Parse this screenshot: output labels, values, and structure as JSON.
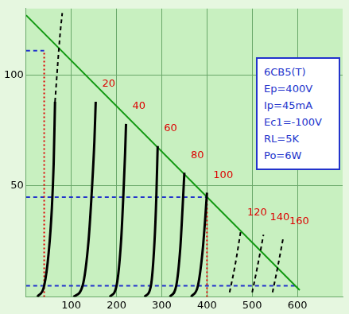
{
  "chart_data": {
    "type": "line",
    "annotations": [
      "6CB5(T)",
      "Ep=400V",
      "Ip=45mA",
      "Ec1=-100V",
      "RL=5K",
      "Po=6W"
    ],
    "xlim": [
      0,
      700
    ],
    "xticks": [
      100,
      200,
      300,
      400,
      500,
      600
    ],
    "ylim": [
      0,
      130
    ],
    "yticks": [
      50,
      100
    ],
    "grid": true,
    "series": [
      {
        "color": "#000000",
        "line_style": "solid",
        "x": [
          25,
          40,
          50,
          57,
          61,
          64
        ],
        "values": [
          0,
          5,
          20,
          40,
          60,
          88
        ]
      },
      {
        "color": "#000000",
        "line_style": "dashed",
        "x": [
          64,
          70,
          75,
          80
        ],
        "values": [
          88,
          105,
          118,
          128
        ]
      },
      {
        "name": "20",
        "color": "#000000",
        "line_style": "solid",
        "x": [
          105,
          125,
          138,
          146,
          151,
          154
        ],
        "values": [
          0,
          5,
          25,
          50,
          70,
          88
        ]
      },
      {
        "name": "40",
        "color": "#000000",
        "line_style": "solid",
        "x": [
          185,
          200,
          210,
          216,
          219,
          221
        ],
        "values": [
          0,
          5,
          25,
          50,
          65,
          78
        ]
      },
      {
        "name": "60",
        "color": "#000000",
        "line_style": "solid",
        "x": [
          262,
          276,
          284,
          288,
          291
        ],
        "values": [
          0,
          5,
          25,
          45,
          68
        ]
      },
      {
        "name": "80",
        "color": "#000000",
        "line_style": "solid",
        "x": [
          318,
          332,
          341,
          346,
          350
        ],
        "values": [
          0,
          5,
          22,
          40,
          56
        ]
      },
      {
        "name": "100",
        "color": "#000000",
        "line_style": "solid",
        "x": [
          365,
          380,
          390,
          396,
          400
        ],
        "values": [
          0,
          5,
          20,
          35,
          47
        ]
      },
      {
        "name": "120",
        "color": "#000000",
        "line_style": "dashed",
        "x": [
          450,
          462,
          475
        ],
        "values": [
          2,
          14,
          30
        ]
      },
      {
        "name": "140",
        "color": "#000000",
        "line_style": "dashed",
        "x": [
          500,
          512,
          525
        ],
        "values": [
          2,
          14,
          28
        ]
      },
      {
        "name": "160",
        "color": "#000000",
        "line_style": "dashed",
        "x": [
          545,
          556,
          568
        ],
        "values": [
          2,
          13,
          26
        ]
      },
      {
        "color": "#119911",
        "line_style": "solid",
        "x": [
          0,
          605
        ],
        "values": [
          127,
          3
        ]
      },
      {
        "color": "#dd0000",
        "line_style": "dotted",
        "x": [
          40,
          40
        ],
        "values": [
          0,
          111
        ]
      },
      {
        "color": "#dd0000",
        "line_style": "dotted",
        "x": [
          400,
          400
        ],
        "values": [
          0,
          45
        ]
      },
      {
        "color": "#2233cc",
        "line_style": "dashed",
        "x": [
          0,
          40
        ],
        "values": [
          111,
          111
        ]
      },
      {
        "color": "#2233cc",
        "line_style": "dashed",
        "x": [
          0,
          400
        ],
        "values": [
          45,
          45
        ]
      },
      {
        "color": "#2233cc",
        "line_style": "dashed",
        "x": [
          0,
          600
        ],
        "values": [
          5,
          5
        ]
      }
    ]
  }
}
